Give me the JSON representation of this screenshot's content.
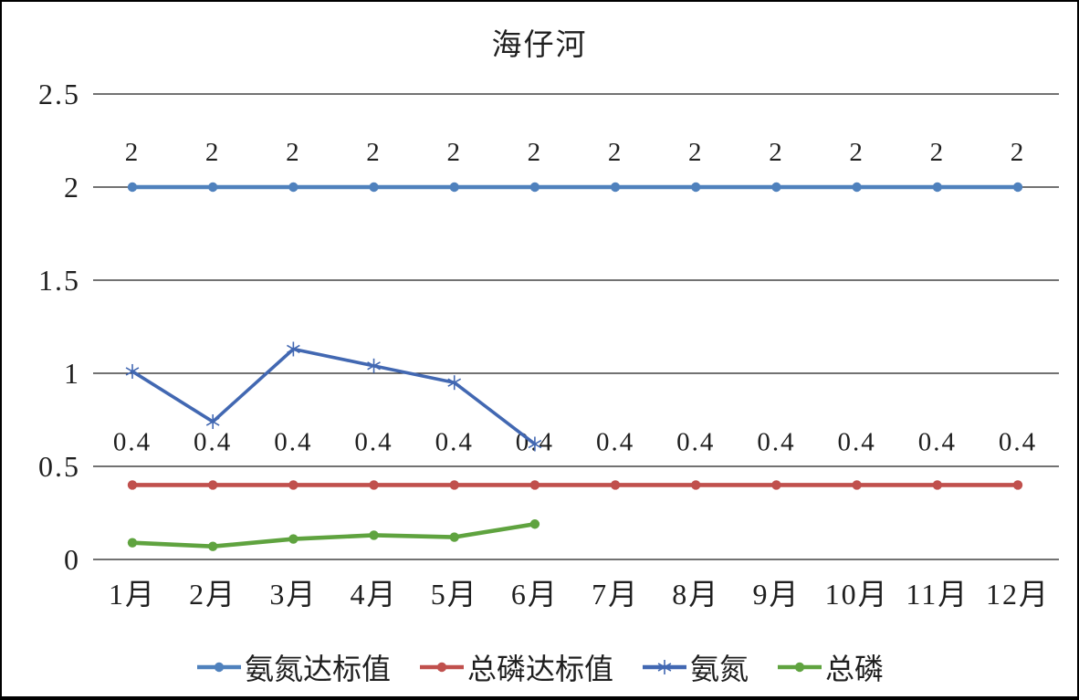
{
  "chart_data": {
    "type": "line",
    "title": "海仔河",
    "categories": [
      "1月",
      "2月",
      "3月",
      "4月",
      "5月",
      "6月",
      "7月",
      "8月",
      "9月",
      "10月",
      "11月",
      "12月"
    ],
    "x_axis_label": "",
    "y_axis_label": "",
    "y_axis": {
      "min": 0,
      "max": 2.5,
      "step": 0.5,
      "tick_labels": [
        "0",
        "0.5",
        "1",
        "1.5",
        "2",
        "2.5"
      ]
    },
    "grid": "horizontal",
    "legend_position": "bottom",
    "series": [
      {
        "name": "氨氮达标值",
        "color": "#4F81BD",
        "marker": "circle",
        "values": [
          2,
          2,
          2,
          2,
          2,
          2,
          2,
          2,
          2,
          2,
          2,
          2
        ],
        "data_labels": [
          "2",
          "2",
          "2",
          "2",
          "2",
          "2",
          "2",
          "2",
          "2",
          "2",
          "2",
          "2"
        ]
      },
      {
        "name": "总磷达标值",
        "color": "#C0504D",
        "marker": "circle",
        "values": [
          0.4,
          0.4,
          0.4,
          0.4,
          0.4,
          0.4,
          0.4,
          0.4,
          0.4,
          0.4,
          0.4,
          0.4
        ],
        "data_labels": [
          "0.4",
          "0.4",
          "0.4",
          "0.4",
          "0.4",
          "0.4",
          "0.4",
          "0.4",
          "0.4",
          "0.4",
          "0.4",
          "0.4"
        ]
      },
      {
        "name": "氨氮",
        "color": "#4268B2",
        "marker": "asterisk",
        "values": [
          1.01,
          0.74,
          1.13,
          1.04,
          0.95,
          0.62,
          null,
          null,
          null,
          null,
          null,
          null
        ],
        "data_labels": null
      },
      {
        "name": "总磷",
        "color": "#5FA33F",
        "marker": "circle",
        "values": [
          0.09,
          0.07,
          0.11,
          0.13,
          0.12,
          0.19,
          null,
          null,
          null,
          null,
          null,
          null
        ],
        "data_labels": null
      }
    ]
  },
  "colors": {
    "background": "#ffffff",
    "frame_border": "#000000",
    "gridline": "#1f1f1f",
    "text": "#1f1f1f"
  }
}
